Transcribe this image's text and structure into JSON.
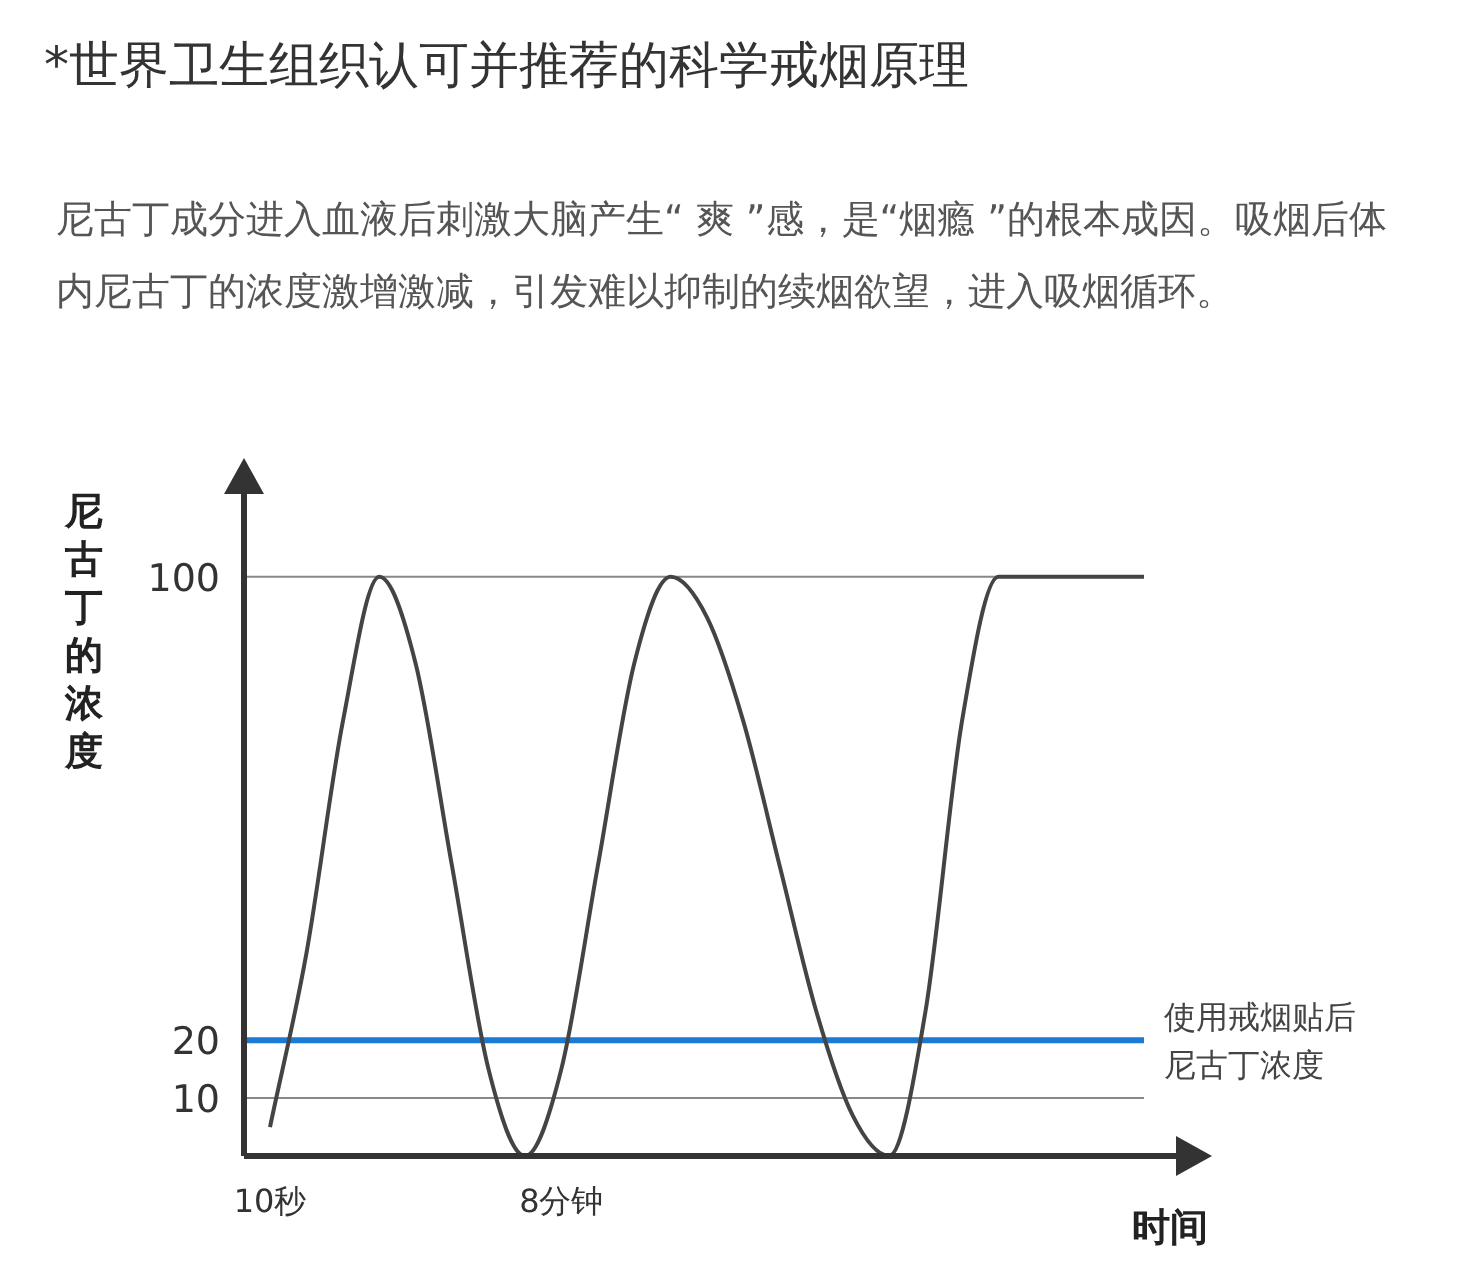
{
  "chart_data": {
    "type": "line",
    "title": "*世界卫生组织认可并推荐的科学戒烟原理",
    "subtitle": "尼古丁成分进入血液后刺激大脑产生“ 爽 ”感，是“烟瘾 ”的根本成因。吸烟后体内尼古丁的浓度激增激减，引发难以抑制的续烟欲望，进入吸烟循环。",
    "xlabel": "时间",
    "ylabel": "尼古丁的浓度",
    "categories": [
      "10秒",
      null,
      null,
      null,
      null,
      null,
      null,
      null,
      "8分钟",
      null,
      null,
      null,
      null,
      null,
      null,
      null,
      null,
      null,
      null,
      null,
      null,
      null,
      null,
      null,
      null
    ],
    "series": [
      {
        "color": "#444444",
        "values": [
          5,
          35,
          75,
          100,
          85,
          50,
          15,
          0,
          15,
          50,
          85,
          100,
          93,
          75,
          50,
          25,
          7,
          0,
          25,
          75,
          100,
          100,
          100,
          100,
          100
        ]
      }
    ],
    "ylim": [
      0,
      115
    ],
    "yticks": [
      10,
      20,
      100
    ],
    "grid": "y",
    "ref_lines": [
      {
        "axis": "y",
        "value": 20,
        "label": "使用戒烟贴后尼古丁浓度",
        "color": "#1a7ad4"
      }
    ],
    "line_style": "solid",
    "marker": "none"
  }
}
